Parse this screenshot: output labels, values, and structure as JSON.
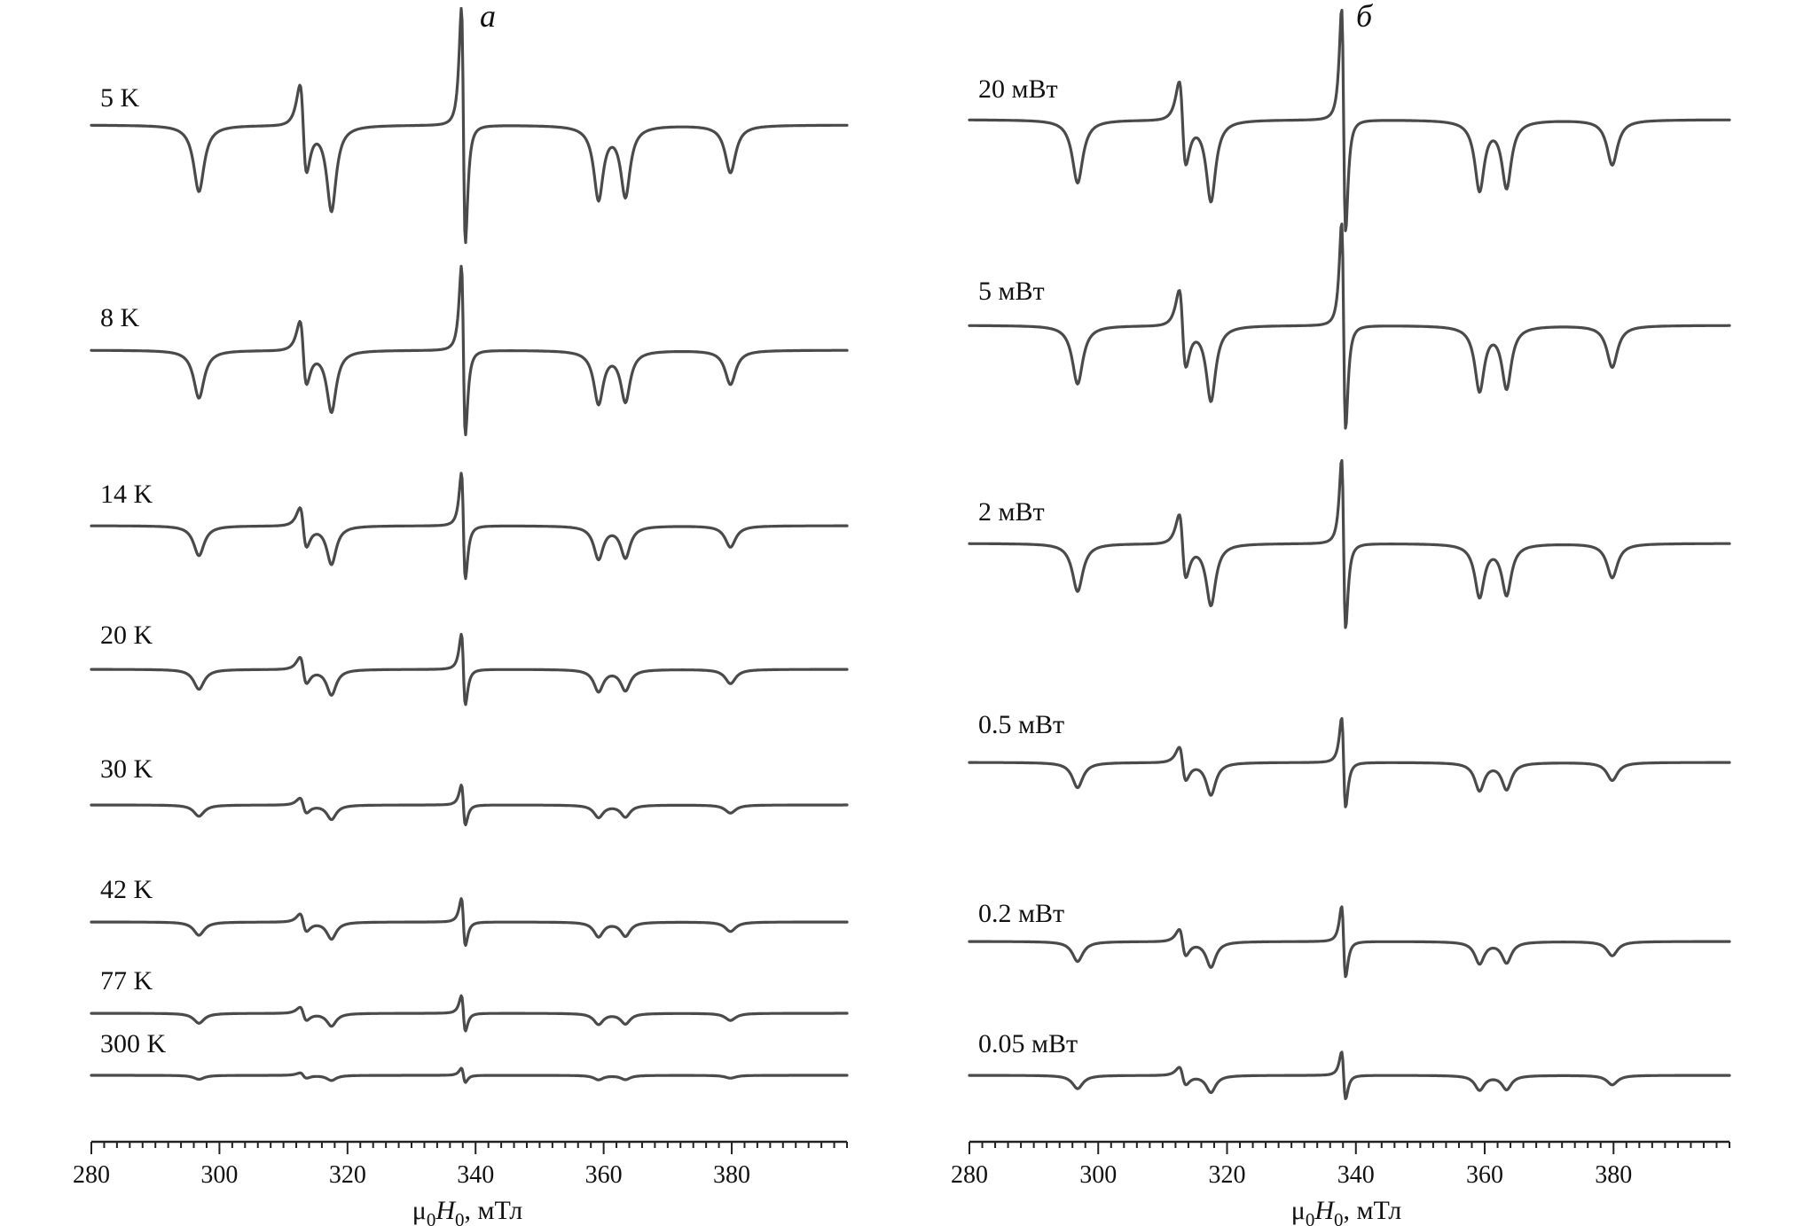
{
  "chart_data": [
    {
      "type": "line",
      "panel_label": "а",
      "xlabel": {
        "pre": "μ",
        "sub1": "0",
        "mid": "H",
        "sub2": "0",
        "post": ", мТл"
      },
      "xlim": [
        280,
        398
      ],
      "xticks": [
        280,
        300,
        320,
        340,
        360,
        380
      ],
      "minor_tick_step": 2,
      "series": [
        {
          "name": "5 K",
          "amplitude": 1.0
        },
        {
          "name": "8 K",
          "amplitude": 0.72
        },
        {
          "name": "14 K",
          "amplitude": 0.45
        },
        {
          "name": "20 K",
          "amplitude": 0.3
        },
        {
          "name": "30 K",
          "amplitude": 0.17
        },
        {
          "name": "42 K",
          "amplitude": 0.2
        },
        {
          "name": "77 K",
          "amplitude": 0.15
        },
        {
          "name": "300 K",
          "amplitude": 0.06
        }
      ]
    },
    {
      "type": "line",
      "panel_label": "б",
      "xlabel": {
        "pre": "μ",
        "sub1": "0",
        "mid": "H",
        "sub2": "0",
        "post": ", мТл"
      },
      "xlim": [
        280,
        398
      ],
      "xticks": [
        280,
        300,
        320,
        340,
        360,
        380
      ],
      "minor_tick_step": 2,
      "series": [
        {
          "name": "20 мВт",
          "amplitude": 0.95
        },
        {
          "name": "5 мВт",
          "amplitude": 0.88
        },
        {
          "name": "2 мВт",
          "amplitude": 0.72
        },
        {
          "name": "0.5 мВт",
          "amplitude": 0.38
        },
        {
          "name": "0.2 мВт",
          "amplitude": 0.3
        },
        {
          "name": "0.05 мВт",
          "amplitude": 0.2
        }
      ]
    }
  ],
  "lines": {
    "x": [
      296.8,
      313.1,
      317.5,
      338.1,
      359.2,
      363.4,
      379.8
    ],
    "type": [
      "abs",
      "deriv",
      "abs",
      "deriv",
      "abs",
      "abs",
      "abs"
    ]
  }
}
